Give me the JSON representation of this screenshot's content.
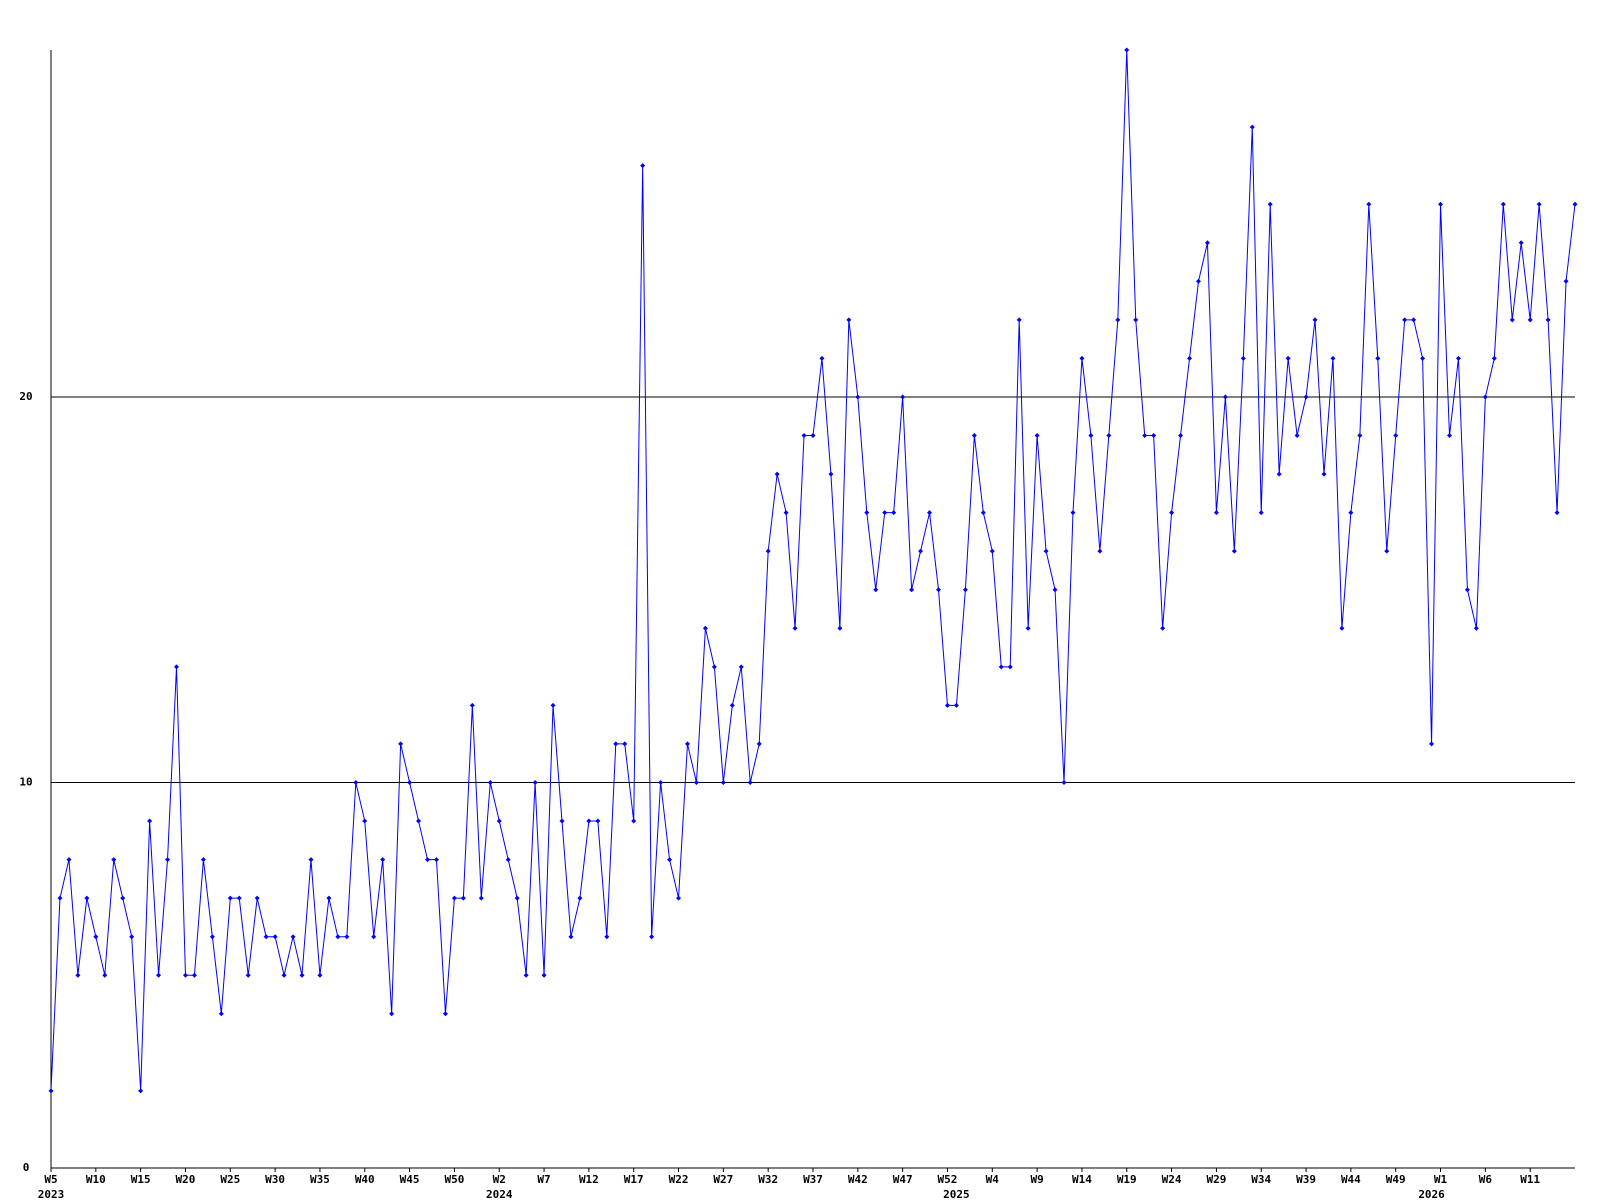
{
  "chart_data": {
    "type": "line",
    "categories": [
      "W5",
      null,
      null,
      null,
      null,
      "W10",
      null,
      null,
      null,
      null,
      "W15",
      null,
      null,
      null,
      null,
      "W20",
      null,
      null,
      null,
      null,
      "W25",
      null,
      null,
      null,
      null,
      "W30",
      null,
      null,
      null,
      null,
      "W35",
      null,
      null,
      null,
      null,
      "W40",
      null,
      null,
      null,
      null,
      "W45",
      null,
      null,
      null,
      null,
      "W50",
      null,
      null,
      null,
      null,
      "W2",
      null,
      null,
      null,
      null,
      "W7",
      null,
      null,
      null,
      null,
      "W12",
      null,
      null,
      null,
      null,
      "W17",
      null,
      null,
      null,
      null,
      "W22",
      null,
      null,
      null,
      null,
      "W27",
      null,
      null,
      null,
      null,
      "W32",
      null,
      null,
      null,
      null,
      "W37",
      null,
      null,
      null,
      null,
      "W42",
      null,
      null,
      null,
      null,
      "W47",
      null,
      null,
      null,
      null,
      "W52",
      null,
      null,
      null,
      null,
      "W4",
      null,
      null,
      null,
      null,
      "W9",
      null,
      null,
      null,
      null,
      "W14",
      null,
      null,
      null,
      null,
      "W19",
      null,
      null,
      null,
      null,
      "W24",
      null,
      null,
      null,
      null,
      "W29",
      null,
      null,
      null,
      null,
      "W34",
      null,
      null,
      null,
      null,
      "W39",
      null,
      null,
      null,
      null,
      "W44",
      null,
      null,
      null,
      null,
      "W49",
      null,
      null,
      null,
      null,
      "W1",
      null,
      null,
      null,
      null,
      "W6",
      null,
      null,
      null,
      null,
      "W11",
      null,
      null,
      null,
      null,
      null
    ],
    "year_labels": [
      "2023",
      null,
      null,
      null,
      null,
      null,
      null,
      null,
      null,
      null,
      null,
      null,
      null,
      null,
      null,
      null,
      null,
      null,
      null,
      null,
      null,
      null,
      null,
      null,
      null,
      null,
      null,
      null,
      null,
      null,
      null,
      null,
      null,
      null,
      null,
      null,
      null,
      null,
      null,
      null,
      null,
      null,
      null,
      null,
      null,
      null,
      null,
      null,
      null,
      null,
      "2024",
      null,
      null,
      null,
      null,
      null,
      null,
      null,
      null,
      null,
      null,
      null,
      null,
      null,
      null,
      null,
      null,
      null,
      null,
      null,
      null,
      null,
      null,
      null,
      null,
      null,
      null,
      null,
      null,
      null,
      null,
      null,
      null,
      null,
      null,
      null,
      null,
      null,
      null,
      null,
      null,
      null,
      null,
      null,
      null,
      null,
      null,
      null,
      null,
      null,
      null,
      "2025",
      null,
      null,
      null,
      null,
      null,
      null,
      null,
      null,
      null,
      null,
      null,
      null,
      null,
      null,
      null,
      null,
      null,
      null,
      null,
      null,
      null,
      null,
      null,
      null,
      null,
      null,
      null,
      null,
      null,
      null,
      null,
      null,
      null,
      null,
      null,
      null,
      null,
      null,
      null,
      null,
      null,
      null,
      null,
      null,
      null,
      null,
      null,
      null,
      null,
      null,
      null,
      null,
      "2026",
      null,
      null,
      null,
      null,
      null,
      null,
      null,
      null,
      null,
      null,
      null,
      null,
      null,
      null,
      null
    ],
    "values": [
      2,
      7,
      8,
      5,
      7,
      6,
      5,
      8,
      7,
      6,
      2,
      9,
      5,
      8,
      13,
      5,
      5,
      8,
      6,
      4,
      7,
      7,
      5,
      7,
      6,
      6,
      5,
      6,
      5,
      8,
      5,
      7,
      6,
      6,
      10,
      9,
      6,
      8,
      4,
      11,
      10,
      9,
      8,
      8,
      4,
      7,
      7,
      12,
      7,
      10,
      9,
      8,
      7,
      5,
      10,
      5,
      12,
      9,
      6,
      7,
      9,
      9,
      6,
      11,
      11,
      9,
      26,
      6,
      10,
      8,
      7,
      11,
      10,
      14,
      13,
      10,
      12,
      13,
      10,
      11,
      16,
      18,
      17,
      14,
      19,
      19,
      21,
      18,
      14,
      22,
      20,
      17,
      15,
      17,
      17,
      20,
      15,
      16,
      17,
      15,
      12,
      12,
      15,
      19,
      17,
      16,
      13,
      13,
      22,
      14,
      19,
      16,
      15,
      10,
      17,
      21,
      19,
      16,
      19,
      22,
      29,
      22,
      19,
      19,
      14,
      17,
      19,
      21,
      23,
      24,
      17,
      20,
      16,
      21,
      27,
      17,
      25,
      18,
      21,
      19,
      20,
      22,
      18,
      21,
      14,
      17,
      19,
      25,
      21,
      16,
      19,
      22,
      22,
      21,
      11,
      25,
      19,
      21,
      15,
      14,
      20,
      21,
      25,
      22,
      24,
      22,
      25,
      22,
      17,
      23,
      25
    ],
    "color": "#0000ff",
    "ylim": [
      0,
      29
    ],
    "yticks": [
      0,
      10,
      20
    ],
    "grid": true
  }
}
